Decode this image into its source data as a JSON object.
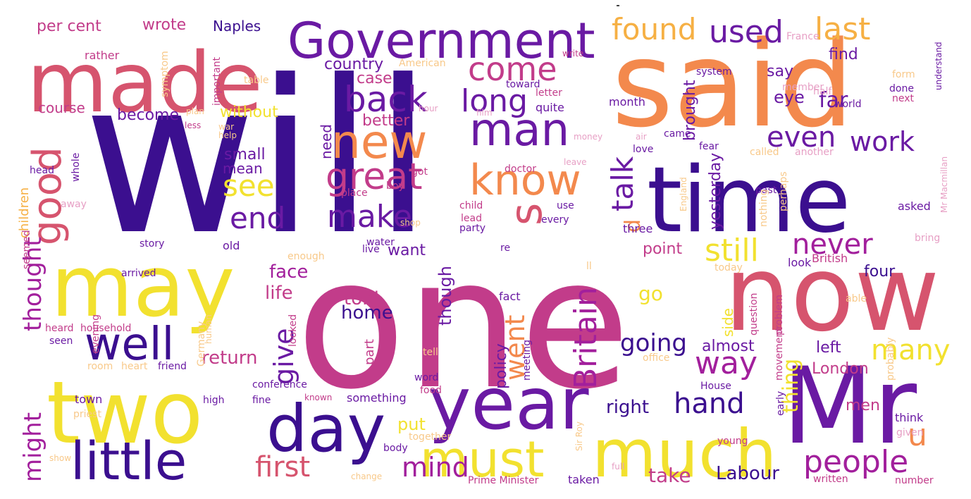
{
  "palette": {
    "deep_purple": "#3b0f8f",
    "purple": "#6a1aa3",
    "magenta": "#a21f9c",
    "pink": "#c23c8a",
    "rose": "#d6546e",
    "orange": "#f3894d",
    "light_orange": "#f6b044",
    "yellow": "#f2e12f",
    "pale_orange": "#f8c98a",
    "pale_pink": "#e7a0c5"
  },
  "words": [
    {
      "id": "will",
      "text": "will"
    },
    {
      "id": "one",
      "text": "one"
    },
    {
      "id": "said",
      "text": "said"
    },
    {
      "id": "time",
      "text": "time"
    },
    {
      "id": "made",
      "text": "made"
    },
    {
      "id": "now",
      "text": "now"
    },
    {
      "id": "mr",
      "text": "Mr"
    },
    {
      "id": "may",
      "text": "may"
    },
    {
      "id": "two",
      "text": "two"
    },
    {
      "id": "year",
      "text": "year"
    },
    {
      "id": "much",
      "text": "much"
    },
    {
      "id": "day",
      "text": "day"
    },
    {
      "id": "government",
      "text": "Government"
    },
    {
      "id": "little",
      "text": "little"
    },
    {
      "id": "must",
      "text": "must"
    },
    {
      "id": "well",
      "text": "well"
    },
    {
      "id": "new",
      "text": "new"
    },
    {
      "id": "know",
      "text": "know"
    },
    {
      "id": "man",
      "text": "man"
    },
    {
      "id": "good",
      "text": "good"
    },
    {
      "id": "s",
      "text": "s"
    },
    {
      "id": "great",
      "text": "great"
    },
    {
      "id": "back",
      "text": "back"
    },
    {
      "id": "come",
      "text": "come"
    },
    {
      "id": "long",
      "text": "long"
    },
    {
      "id": "found",
      "text": "found"
    },
    {
      "id": "used",
      "text": "used"
    },
    {
      "id": "last",
      "text": "last"
    },
    {
      "id": "see",
      "text": "see"
    },
    {
      "id": "end",
      "text": "end"
    },
    {
      "id": "make",
      "text": "make"
    },
    {
      "id": "talk",
      "text": "talk"
    },
    {
      "id": "even",
      "text": "even"
    },
    {
      "id": "work",
      "text": "work"
    },
    {
      "id": "still",
      "text": "still"
    },
    {
      "id": "never",
      "text": "never"
    },
    {
      "id": "people",
      "text": "people"
    },
    {
      "id": "many",
      "text": "many"
    },
    {
      "id": "way",
      "text": "way"
    },
    {
      "id": "britain",
      "text": "Britain"
    },
    {
      "id": "first",
      "text": "first"
    },
    {
      "id": "mind",
      "text": "mind"
    },
    {
      "id": "hand",
      "text": "hand"
    },
    {
      "id": "might",
      "text": "might"
    },
    {
      "id": "thought",
      "text": "thought"
    },
    {
      "id": "went",
      "text": "went"
    },
    {
      "id": "give",
      "text": "give"
    },
    {
      "id": "going",
      "text": "going"
    },
    {
      "id": "u",
      "text": "u"
    },
    {
      "id": "thing",
      "text": "thing"
    },
    {
      "id": "labour",
      "text": "Labour"
    },
    {
      "id": "take",
      "text": "take"
    },
    {
      "id": "right",
      "text": "right"
    },
    {
      "id": "put",
      "text": "put"
    },
    {
      "id": "home",
      "text": "home"
    },
    {
      "id": "told",
      "text": "told"
    },
    {
      "id": "face",
      "text": "face"
    },
    {
      "id": "life",
      "text": "life"
    },
    {
      "id": "return",
      "text": "return"
    },
    {
      "id": "go",
      "text": "go"
    },
    {
      "id": "point",
      "text": "point"
    },
    {
      "id": "four",
      "text": "four"
    },
    {
      "id": "left",
      "text": "left"
    },
    {
      "id": "london",
      "text": "London"
    },
    {
      "id": "men",
      "text": "men"
    },
    {
      "id": "almost",
      "text": "almost"
    },
    {
      "id": "far",
      "text": "far"
    },
    {
      "id": "eye",
      "text": "eye"
    },
    {
      "id": "say",
      "text": "say"
    },
    {
      "id": "find",
      "text": "find"
    },
    {
      "id": "course",
      "text": "course"
    },
    {
      "id": "country",
      "text": "country"
    },
    {
      "id": "case",
      "text": "case"
    },
    {
      "id": "better",
      "text": "better"
    },
    {
      "id": "become",
      "text": "become"
    },
    {
      "id": "without",
      "text": "without"
    },
    {
      "id": "small",
      "text": "small"
    },
    {
      "id": "mean",
      "text": "mean"
    },
    {
      "id": "want",
      "text": "want"
    },
    {
      "id": "need",
      "text": "need"
    },
    {
      "id": "brought",
      "text": "brought"
    },
    {
      "id": "d",
      "text": "d"
    },
    {
      "id": "yesterday",
      "text": "yesterday"
    },
    {
      "id": "though",
      "text": "though"
    },
    {
      "id": "policy",
      "text": "policy"
    },
    {
      "id": "side",
      "text": "side"
    },
    {
      "id": "per_cent",
      "text": "per cent"
    },
    {
      "id": "wrote",
      "text": "wrote"
    },
    {
      "id": "naples",
      "text": "Naples"
    },
    {
      "id": "children",
      "text": "children"
    },
    {
      "id": "household",
      "text": "household"
    },
    {
      "id": "heard",
      "text": "heard"
    },
    {
      "id": "seen",
      "text": "seen"
    },
    {
      "id": "town",
      "text": "town"
    },
    {
      "id": "priest",
      "text": "priest"
    },
    {
      "id": "high",
      "text": "high"
    },
    {
      "id": "conference",
      "text": "conference"
    },
    {
      "id": "something",
      "text": "something"
    },
    {
      "id": "word",
      "text": "word"
    },
    {
      "id": "food",
      "text": "food"
    },
    {
      "id": "part",
      "text": "part"
    },
    {
      "id": "fact",
      "text": "fact"
    },
    {
      "id": "old",
      "text": "old"
    },
    {
      "id": "story",
      "text": "story"
    },
    {
      "id": "arrived",
      "text": "arrived"
    },
    {
      "id": "look",
      "text": "look"
    },
    {
      "id": "british",
      "text": "British"
    },
    {
      "id": "house",
      "text": "House"
    },
    {
      "id": "think",
      "text": "think"
    },
    {
      "id": "given",
      "text": "given"
    },
    {
      "id": "young",
      "text": "young"
    },
    {
      "id": "written",
      "text": "written"
    },
    {
      "id": "number",
      "text": "number"
    },
    {
      "id": "prime_minister",
      "text": "Prime Minister"
    },
    {
      "id": "taken",
      "text": "taken"
    },
    {
      "id": "change",
      "text": "change"
    },
    {
      "id": "body",
      "text": "body"
    },
    {
      "id": "together",
      "text": "together"
    },
    {
      "id": "show",
      "text": "show"
    },
    {
      "id": "fine",
      "text": "fine"
    },
    {
      "id": "known",
      "text": "known"
    },
    {
      "id": "friend",
      "text": "friend"
    },
    {
      "id": "heart",
      "text": "heart"
    },
    {
      "id": "room",
      "text": "room"
    },
    {
      "id": "tell",
      "text": "tell"
    },
    {
      "id": "office",
      "text": "office"
    },
    {
      "id": "meeting",
      "text": "meeting"
    },
    {
      "id": "three",
      "text": "three"
    },
    {
      "id": "asked",
      "text": "asked"
    },
    {
      "id": "month",
      "text": "month"
    },
    {
      "id": "system",
      "text": "system"
    },
    {
      "id": "member",
      "text": "member"
    },
    {
      "id": "world",
      "text": "world"
    },
    {
      "id": "next",
      "text": "next"
    },
    {
      "id": "done",
      "text": "done"
    },
    {
      "id": "form",
      "text": "form"
    },
    {
      "id": "half",
      "text": "half"
    },
    {
      "id": "france",
      "text": "France"
    },
    {
      "id": "write",
      "text": "write"
    },
    {
      "id": "american",
      "text": "American"
    },
    {
      "id": "toward",
      "text": "toward"
    },
    {
      "id": "letter",
      "text": "letter"
    },
    {
      "id": "quite",
      "text": "quite"
    },
    {
      "id": "film",
      "text": "film"
    },
    {
      "id": "hour",
      "text": "hour"
    },
    {
      "id": "plan",
      "text": "plan"
    },
    {
      "id": "war",
      "text": "war"
    },
    {
      "id": "less",
      "text": "less"
    },
    {
      "id": "help",
      "text": "help"
    },
    {
      "id": "money",
      "text": "money"
    },
    {
      "id": "doctor",
      "text": "doctor"
    },
    {
      "id": "leave",
      "text": "leave"
    },
    {
      "id": "air",
      "text": "air"
    },
    {
      "id": "came",
      "text": "came"
    },
    {
      "id": "fear",
      "text": "fear"
    },
    {
      "id": "love",
      "text": "love"
    },
    {
      "id": "called",
      "text": "called"
    },
    {
      "id": "another",
      "text": "another"
    },
    {
      "id": "past",
      "text": "past"
    },
    {
      "id": "nothing",
      "text": "nothing"
    },
    {
      "id": "perhaps",
      "text": "perhaps"
    },
    {
      "id": "england",
      "text": "England"
    },
    {
      "id": "got",
      "text": "got"
    },
    {
      "id": "boy",
      "text": "boy"
    },
    {
      "id": "place",
      "text": "place"
    },
    {
      "id": "child",
      "text": "child"
    },
    {
      "id": "lead",
      "text": "lead"
    },
    {
      "id": "party",
      "text": "party"
    },
    {
      "id": "use",
      "text": "use"
    },
    {
      "id": "every",
      "text": "every"
    },
    {
      "id": "shop",
      "text": "shop"
    },
    {
      "id": "water",
      "text": "water"
    },
    {
      "id": "live",
      "text": "live"
    },
    {
      "id": "re",
      "text": "re"
    },
    {
      "id": "enough",
      "text": "enough"
    },
    {
      "id": "ll",
      "text": "ll"
    },
    {
      "id": "today",
      "text": "today"
    },
    {
      "id": "able",
      "text": "able"
    },
    {
      "id": "bring",
      "text": "bring"
    },
    {
      "id": "question",
      "text": "question"
    },
    {
      "id": "movement",
      "text": "movement"
    },
    {
      "id": "problem",
      "text": "problem"
    },
    {
      "id": "early",
      "text": "early"
    },
    {
      "id": "probably",
      "text": "probably"
    },
    {
      "id": "sir_roy",
      "text": "Sir Roy"
    },
    {
      "id": "full",
      "text": "full"
    },
    {
      "id": "mr_macmillan",
      "text": "Mr Macmillan"
    },
    {
      "id": "understand",
      "text": "understand"
    },
    {
      "id": "rather",
      "text": "rather"
    },
    {
      "id": "symptom",
      "text": "symptom"
    },
    {
      "id": "important",
      "text": "important"
    },
    {
      "id": "table",
      "text": "table"
    },
    {
      "id": "head",
      "text": "head"
    },
    {
      "id": "whole",
      "text": "whole"
    },
    {
      "id": "away",
      "text": "away"
    },
    {
      "id": "seemed",
      "text": "seemed"
    },
    {
      "id": "evening",
      "text": "evening"
    },
    {
      "id": "human",
      "text": "human"
    },
    {
      "id": "germany",
      "text": "Germany"
    },
    {
      "id": "looked",
      "text": "looked"
    }
  ]
}
